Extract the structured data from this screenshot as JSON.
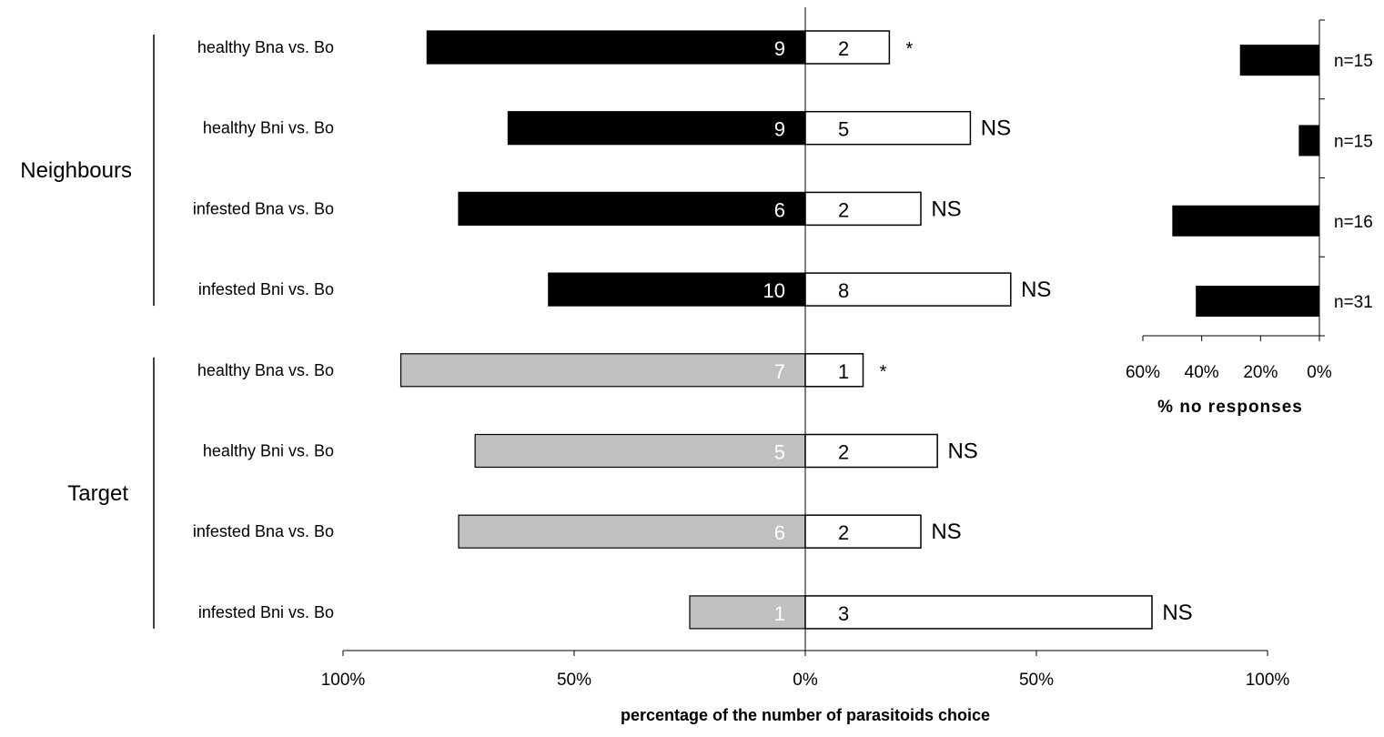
{
  "chart_data": [
    {
      "type": "bar",
      "orientation": "horizontal",
      "stacking": "diverging",
      "xlabel": "percentage of the number of parasitoids choice",
      "xticks": [
        "100%",
        "50%",
        "0%",
        "50%",
        "100%"
      ],
      "xlim": [
        -100,
        100
      ],
      "groups": [
        {
          "name": "Neighbours",
          "rows": [
            {
              "label": "healthy Bna vs. Bo",
              "left_count": 9,
              "right_count": 2,
              "significance": "*"
            },
            {
              "label": "healthy Bni vs. Bo",
              "left_count": 9,
              "right_count": 5,
              "significance": "NS"
            },
            {
              "label": "infested Bna vs. Bo",
              "left_count": 6,
              "right_count": 2,
              "significance": "NS"
            },
            {
              "label": "infested Bni vs. Bo",
              "left_count": 10,
              "right_count": 8,
              "significance": "NS"
            }
          ]
        },
        {
          "name": "Target",
          "rows": [
            {
              "label": "healthy Bna vs. Bo",
              "left_count": 7,
              "right_count": 1,
              "significance": "*"
            },
            {
              "label": "healthy Bni vs. Bo",
              "left_count": 5,
              "right_count": 2,
              "significance": "NS"
            },
            {
              "label": "infested Bna vs. Bo",
              "left_count": 6,
              "right_count": 2,
              "significance": "NS"
            },
            {
              "label": "infested Bni vs. Bo",
              "left_count": 1,
              "right_count": 3,
              "significance": "NS"
            }
          ]
        }
      ],
      "colors": {
        "neighbours": "#000000",
        "target": "#c0c0c0",
        "right": "#ffffff",
        "outline": "#000000"
      }
    },
    {
      "type": "bar",
      "orientation": "horizontal",
      "xlabel": "% no responses",
      "xticks": [
        "60%",
        "40%",
        "20%",
        "0%"
      ],
      "xlim": [
        60,
        0
      ],
      "rows": [
        {
          "value": 27,
          "n_label": "n=15"
        },
        {
          "value": 7,
          "n_label": "n=15"
        },
        {
          "value": 50,
          "n_label": "n=16"
        },
        {
          "value": 42,
          "n_label": "n=31"
        }
      ],
      "colors": {
        "bar": "#000000"
      }
    }
  ]
}
